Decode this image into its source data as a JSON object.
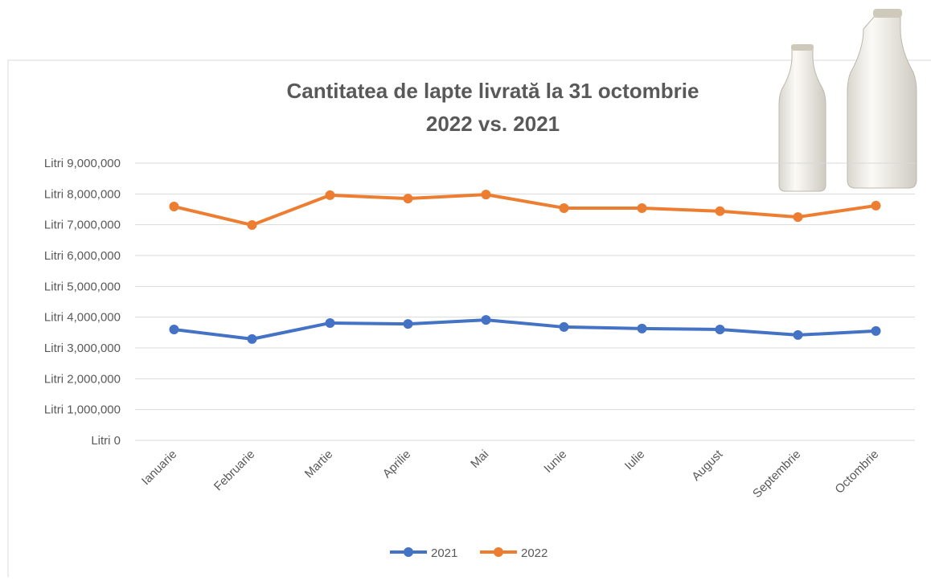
{
  "chart_data": {
    "type": "line",
    "title": [
      "Cantitatea de lapte livrată la 31 octombrie",
      "2022 vs. 2021"
    ],
    "categories": [
      "Ianuarie",
      "Februarie",
      "Martie",
      "Aprilie",
      "Mai",
      "Iunie",
      "Iulie",
      "August",
      "Septembrie",
      "Octombrie"
    ],
    "series": [
      {
        "name": "2021",
        "color": "#4472c4",
        "values": [
          3600000,
          3290000,
          3810000,
          3780000,
          3910000,
          3680000,
          3630000,
          3600000,
          3420000,
          3550000
        ]
      },
      {
        "name": "2022",
        "color": "#ed7d31",
        "values": [
          7590000,
          6990000,
          7960000,
          7850000,
          7980000,
          7540000,
          7540000,
          7440000,
          7250000,
          7620000
        ]
      }
    ],
    "ylim": [
      0,
      9000000
    ],
    "yticks": [
      {
        "value": 0,
        "label": "Litri 0"
      },
      {
        "value": 1000000,
        "label": "Litri 1,000,000"
      },
      {
        "value": 2000000,
        "label": "Litri 2,000,000"
      },
      {
        "value": 3000000,
        "label": "Litri 3,000,000"
      },
      {
        "value": 4000000,
        "label": "Litri 4,000,000"
      },
      {
        "value": 5000000,
        "label": "Litri 5,000,000"
      },
      {
        "value": 6000000,
        "label": "Litri 6,000,000"
      },
      {
        "value": 7000000,
        "label": "Litri 7,000,000"
      },
      {
        "value": 8000000,
        "label": "Litri 8,000,000"
      },
      {
        "value": 9000000,
        "label": "Litri 9,000,000"
      }
    ],
    "grid": true,
    "legend": "bottom"
  }
}
